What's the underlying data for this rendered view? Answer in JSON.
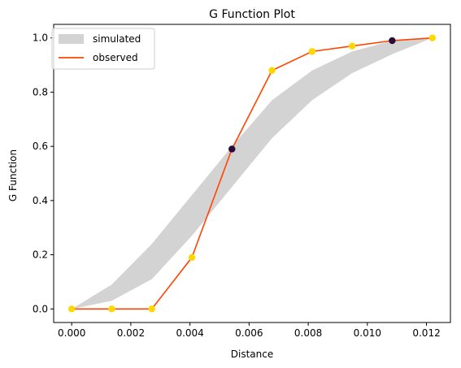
{
  "chart_data": {
    "type": "line",
    "title": "G Function Plot",
    "xlabel": "Distance",
    "ylabel": "G Function",
    "xlim": [
      -0.00061,
      0.01281
    ],
    "ylim": [
      -0.05,
      1.05
    ],
    "xticks": [
      0.0,
      0.002,
      0.004,
      0.006,
      0.008,
      0.01,
      0.012
    ],
    "xtick_labels": [
      "0.000",
      "0.002",
      "0.004",
      "0.006",
      "0.008",
      "0.010",
      "0.012"
    ],
    "yticks": [
      0.0,
      0.2,
      0.4,
      0.6,
      0.8,
      1.0
    ],
    "ytick_labels": [
      "0.0",
      "0.2",
      "0.4",
      "0.6",
      "0.8",
      "1.0"
    ],
    "grid": false,
    "legend": {
      "placement": "upper-left",
      "entries": [
        {
          "label": "simulated",
          "kind": "band",
          "color": "#d3d3d3"
        },
        {
          "label": "observed",
          "kind": "line",
          "color": "#ff4500"
        }
      ]
    },
    "simulated_band": {
      "name": "simulated",
      "color": "#d3d3d3",
      "x": [
        0.0,
        0.001355,
        0.00271,
        0.004065,
        0.00542,
        0.006775,
        0.00813,
        0.009485,
        0.01084,
        0.0122
      ],
      "lower": [
        0.0,
        0.03,
        0.11,
        0.27,
        0.45,
        0.63,
        0.77,
        0.87,
        0.94,
        1.0
      ],
      "upper": [
        0.0,
        0.09,
        0.24,
        0.42,
        0.6,
        0.77,
        0.88,
        0.95,
        0.99,
        1.0
      ]
    },
    "observed": {
      "name": "observed",
      "color": "#ff4500",
      "x": [
        0.0,
        0.001355,
        0.00271,
        0.004065,
        0.00542,
        0.006775,
        0.00813,
        0.009485,
        0.01084,
        0.0122
      ],
      "y": [
        0.0,
        0.0,
        0.0,
        0.19,
        0.59,
        0.88,
        0.95,
        0.97,
        0.99,
        1.0
      ],
      "point_colors": [
        "#ffd700",
        "#ffd700",
        "#ffd700",
        "#ffd700",
        "#2a0a3a",
        "#ffd700",
        "#ffd700",
        "#ffd700",
        "#2a0a3a",
        "#ffd700"
      ]
    }
  }
}
